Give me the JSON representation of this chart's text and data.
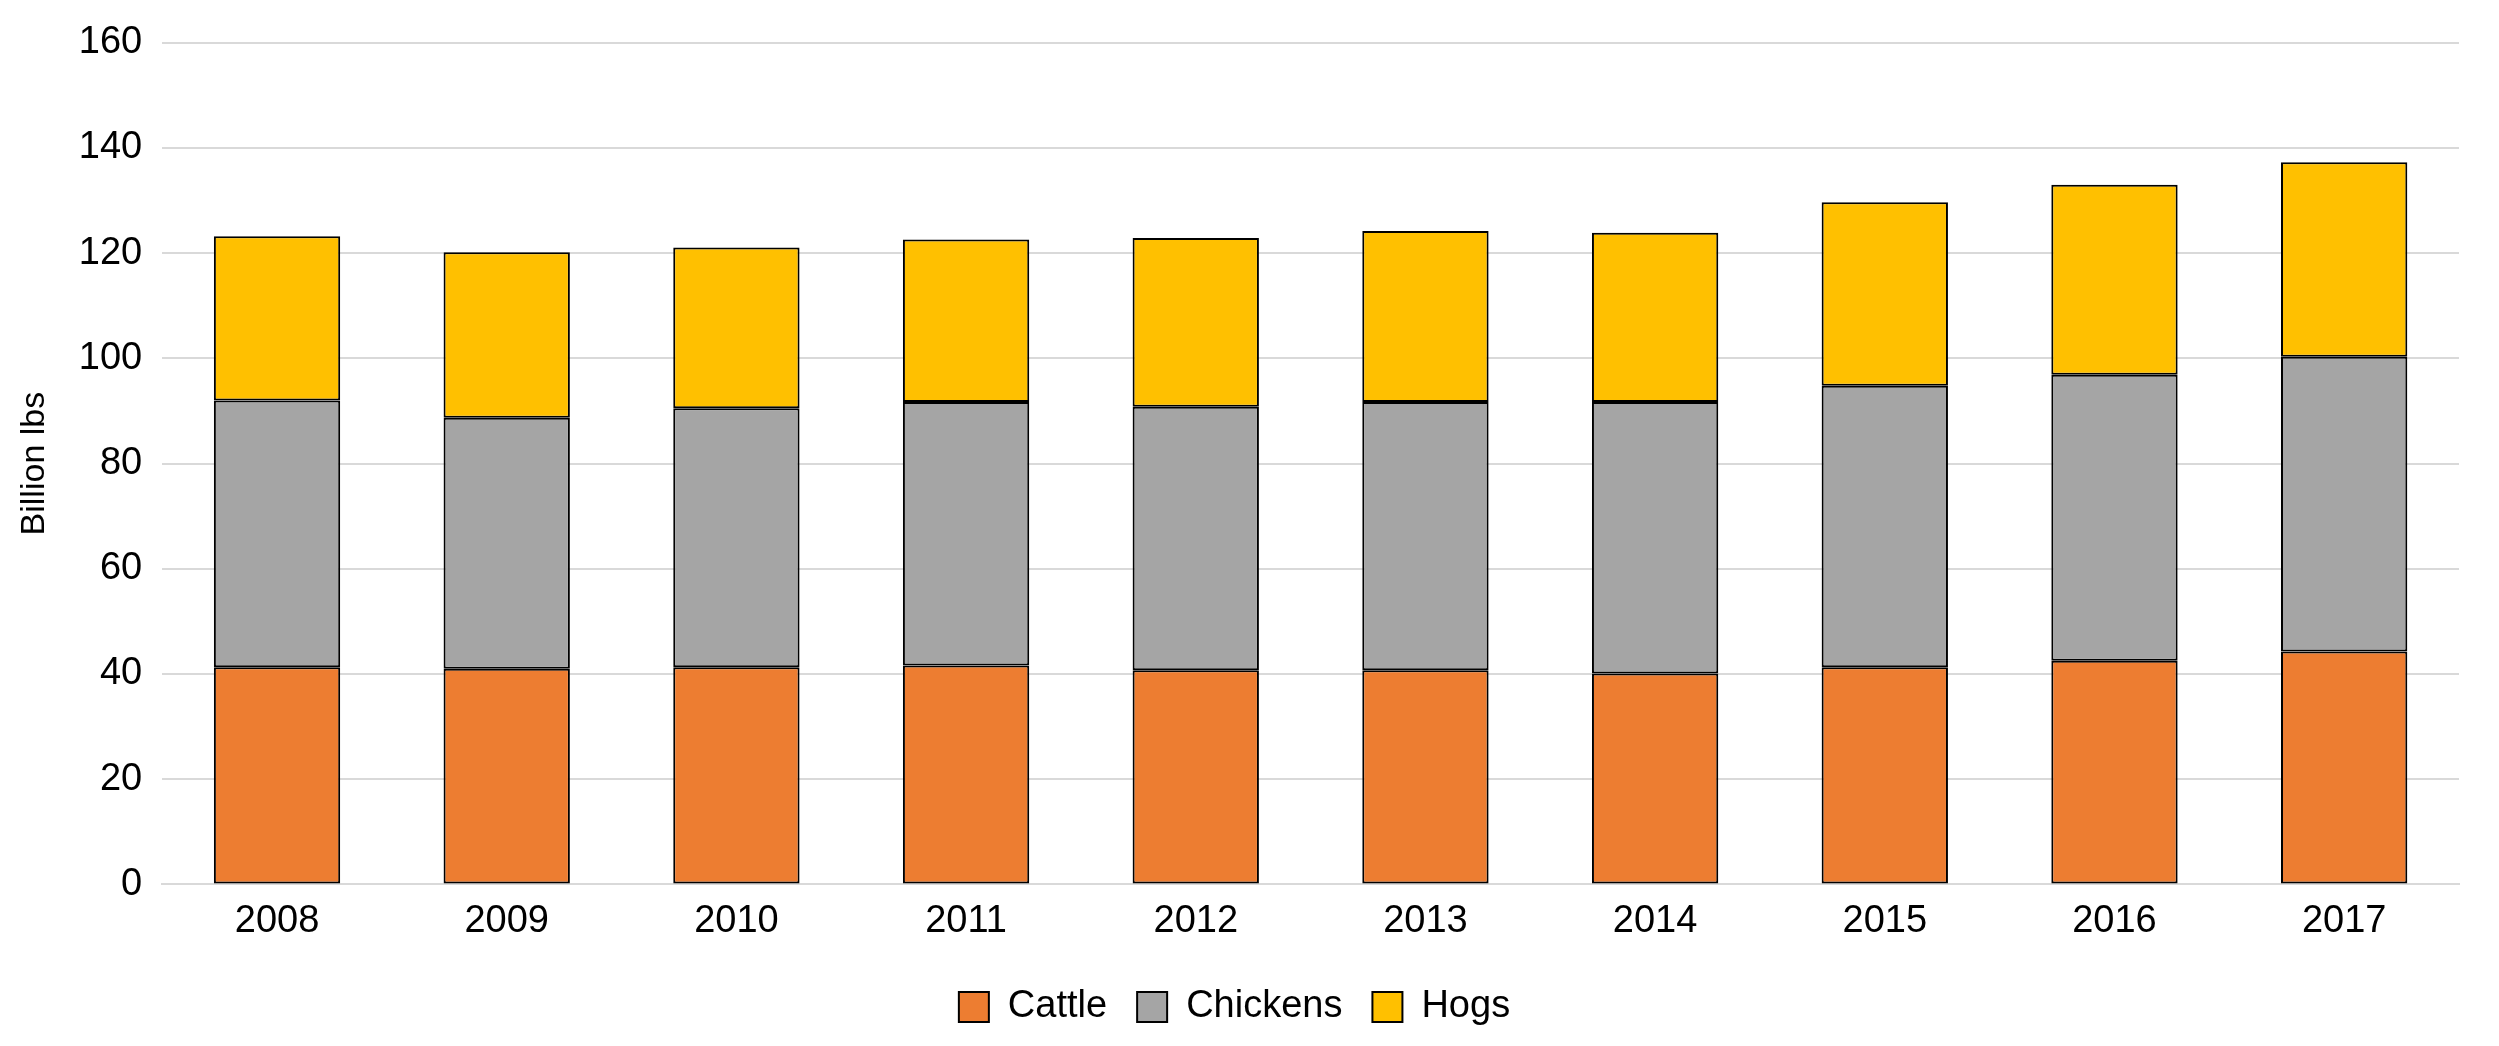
{
  "chart_data": {
    "type": "bar",
    "ylabel": "Billion lbs",
    "categories": [
      "2008",
      "2009",
      "2010",
      "2011",
      "2012",
      "2013",
      "2014",
      "2015",
      "2016",
      "2017"
    ],
    "stacked": true,
    "ylim": [
      0,
      160
    ],
    "yticks": [
      0,
      20,
      40,
      60,
      80,
      100,
      120,
      140,
      160
    ],
    "grid": "y",
    "legend": "bottom",
    "series": [
      {
        "name": "Cattle",
        "color": "#ed7d31",
        "values": [
          41.3,
          41.0,
          41.3,
          41.6,
          40.7,
          40.7,
          40.1,
          41.3,
          42.5,
          44.3
        ]
      },
      {
        "name": "Chickens",
        "color": "#a5a5a5",
        "values": [
          50.7,
          47.7,
          49.2,
          50.1,
          50.1,
          51.0,
          51.6,
          53.5,
          54.4,
          56.0
        ]
      },
      {
        "name": "Hogs",
        "color": "#ffc000",
        "values": [
          31.2,
          31.5,
          30.6,
          30.9,
          32.1,
          32.5,
          32.2,
          34.9,
          36.1,
          37.0
        ]
      }
    ]
  }
}
